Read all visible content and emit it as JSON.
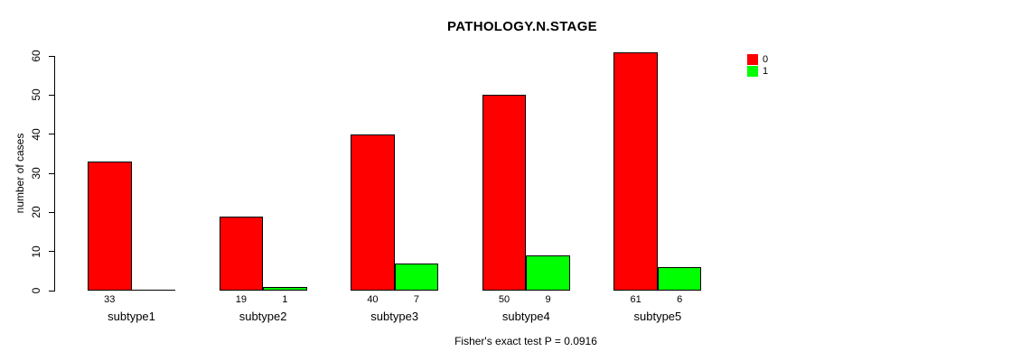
{
  "chart_data": {
    "type": "bar",
    "title": "PATHOLOGY.N.STAGE",
    "ylabel": "number of cases",
    "xlabel": "",
    "footnote": "Fisher's exact test P = 0.0916",
    "ylim": [
      0,
      60
    ],
    "yticks": [
      0,
      10,
      20,
      30,
      40,
      50,
      60
    ],
    "grid": false,
    "legend_position": "right",
    "categories": [
      "subtype1",
      "subtype2",
      "subtype3",
      "subtype4",
      "subtype5"
    ],
    "series": [
      {
        "name": "0",
        "color": "#FF0000",
        "values": [
          33,
          19,
          40,
          50,
          61
        ]
      },
      {
        "name": "1",
        "color": "#00FF00",
        "values": [
          0,
          1,
          7,
          9,
          6
        ]
      }
    ],
    "bar_labels": [
      [
        "33",
        ""
      ],
      [
        "19",
        "1"
      ],
      [
        "40",
        "7"
      ],
      [
        "50",
        "9"
      ],
      [
        "61",
        "6"
      ]
    ],
    "colors": {
      "bar_border": "#000000",
      "axis": "#000000",
      "text": "#000000",
      "background": "#FFFFFF"
    }
  }
}
